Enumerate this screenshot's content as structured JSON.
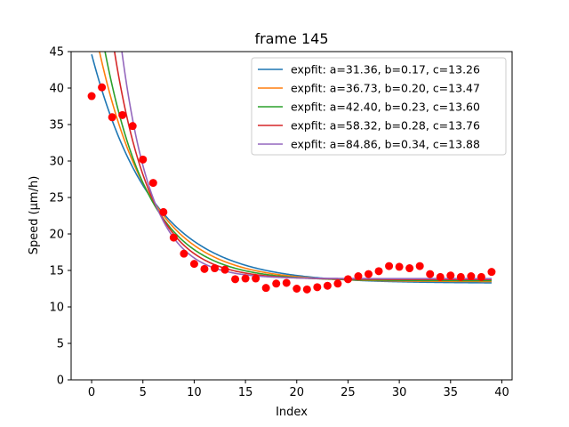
{
  "chart_data": {
    "type": "scatter",
    "title": "frame 145",
    "xlabel": "Index",
    "ylabel": "Speed (μm/h)",
    "xlim": [
      -2,
      41
    ],
    "ylim": [
      0,
      45
    ],
    "xticks": [
      0,
      5,
      10,
      15,
      20,
      25,
      30,
      35,
      40
    ],
    "yticks": [
      0,
      5,
      10,
      15,
      20,
      25,
      30,
      35,
      40,
      45
    ],
    "grid": false,
    "legend_position": "top-right",
    "points": {
      "color": "#ff0000",
      "x": [
        0,
        1,
        2,
        3,
        4,
        5,
        6,
        7,
        8,
        9,
        10,
        11,
        12,
        13,
        14,
        15,
        16,
        17,
        18,
        19,
        20,
        21,
        22,
        23,
        24,
        25,
        26,
        27,
        28,
        29,
        30,
        31,
        32,
        33,
        34,
        35,
        36,
        37,
        38,
        39
      ],
      "y": [
        38.9,
        40.1,
        36.0,
        36.3,
        34.8,
        30.2,
        27.0,
        23.0,
        19.5,
        17.3,
        15.9,
        15.2,
        15.3,
        15.1,
        13.8,
        13.9,
        13.9,
        12.6,
        13.2,
        13.3,
        12.5,
        12.4,
        12.7,
        12.9,
        13.2,
        13.8,
        14.2,
        14.5,
        14.9,
        15.6,
        15.5,
        15.3,
        15.6,
        14.5,
        14.1,
        14.3,
        14.1,
        14.2,
        14.1,
        14.8
      ]
    },
    "series": [
      {
        "name": "expfit: a=31.36, b=0.17, c=13.26",
        "a": 31.36,
        "b": 0.17,
        "c": 13.26,
        "color": "#1f77b4"
      },
      {
        "name": "expfit: a=36.73, b=0.20, c=13.47",
        "a": 36.73,
        "b": 0.2,
        "c": 13.47,
        "color": "#ff7f0e"
      },
      {
        "name": "expfit: a=42.40, b=0.23, c=13.60",
        "a": 42.4,
        "b": 0.23,
        "c": 13.6,
        "color": "#2ca02c"
      },
      {
        "name": "expfit: a=58.32, b=0.28, c=13.76",
        "a": 58.32,
        "b": 0.28,
        "c": 13.76,
        "color": "#d62728"
      },
      {
        "name": "expfit: a=84.86, b=0.34, c=13.88",
        "a": 84.86,
        "b": 0.34,
        "c": 13.88,
        "color": "#9467bd"
      }
    ]
  }
}
